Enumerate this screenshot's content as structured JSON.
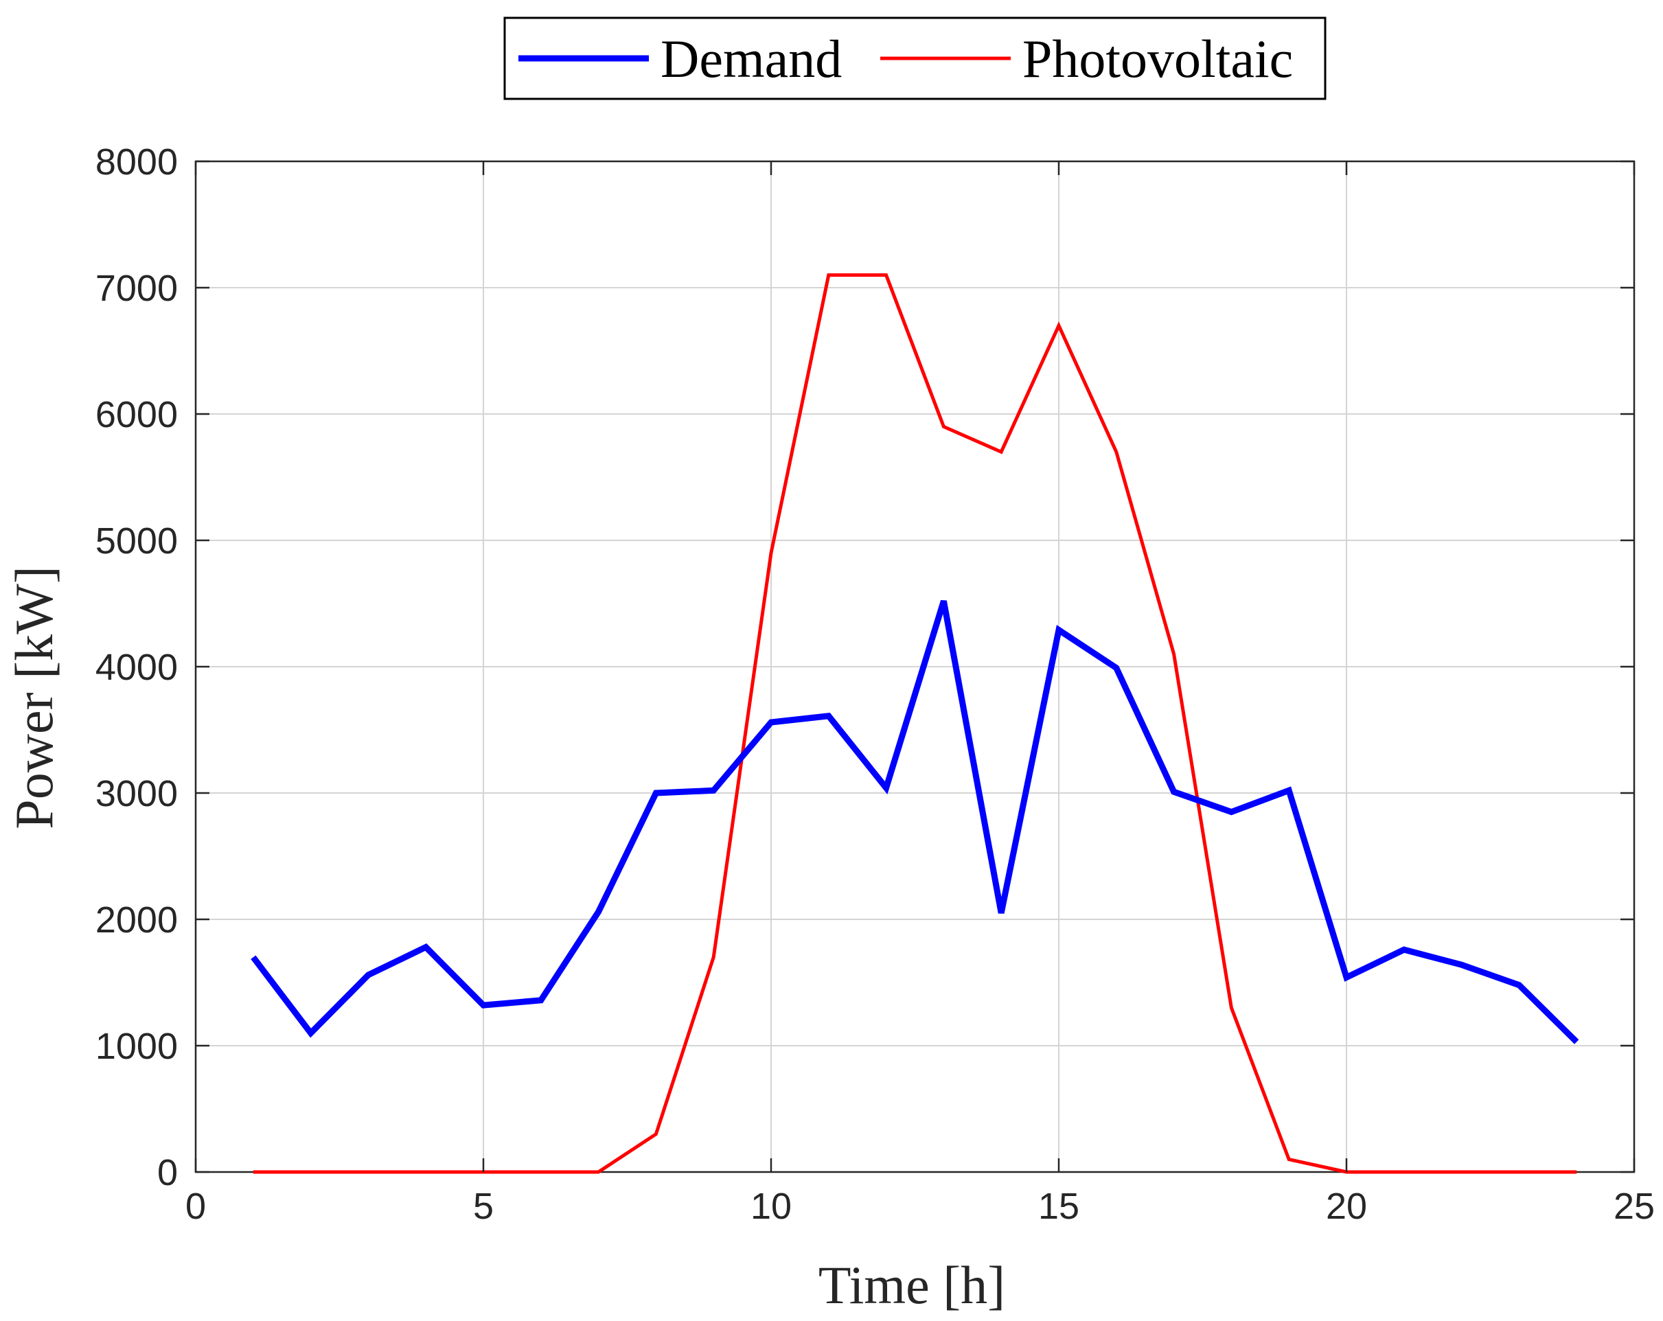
{
  "chart_data": {
    "type": "line",
    "title": "",
    "xlabel": "Time [h]",
    "ylabel": "Power [kW]",
    "xlim": [
      0,
      25
    ],
    "ylim": [
      0,
      8000
    ],
    "x_ticks": [
      0,
      5,
      10,
      15,
      20,
      25
    ],
    "y_ticks": [
      0,
      1000,
      2000,
      3000,
      4000,
      5000,
      6000,
      7000,
      8000
    ],
    "grid": true,
    "legend_position": "top-center",
    "x": [
      1,
      2,
      3,
      4,
      5,
      6,
      7,
      8,
      9,
      10,
      11,
      12,
      13,
      14,
      15,
      16,
      17,
      18,
      19,
      20,
      21,
      22,
      23,
      24
    ],
    "series": [
      {
        "name": "Demand",
        "color": "#0000ff",
        "values": [
          1700,
          1100,
          1560,
          1780,
          1320,
          1360,
          2060,
          3000,
          3020,
          3560,
          3610,
          3040,
          4520,
          2050,
          4290,
          3990,
          3010,
          2850,
          3020,
          1540,
          1760,
          1640,
          1480,
          1030
        ]
      },
      {
        "name": "Photovoltaic",
        "color": "#ff0000",
        "values": [
          0,
          0,
          0,
          0,
          0,
          0,
          0,
          300,
          1700,
          4900,
          7100,
          7100,
          5900,
          5700,
          6700,
          5700,
          4100,
          1300,
          100,
          0,
          0,
          0,
          0,
          0
        ]
      }
    ]
  }
}
